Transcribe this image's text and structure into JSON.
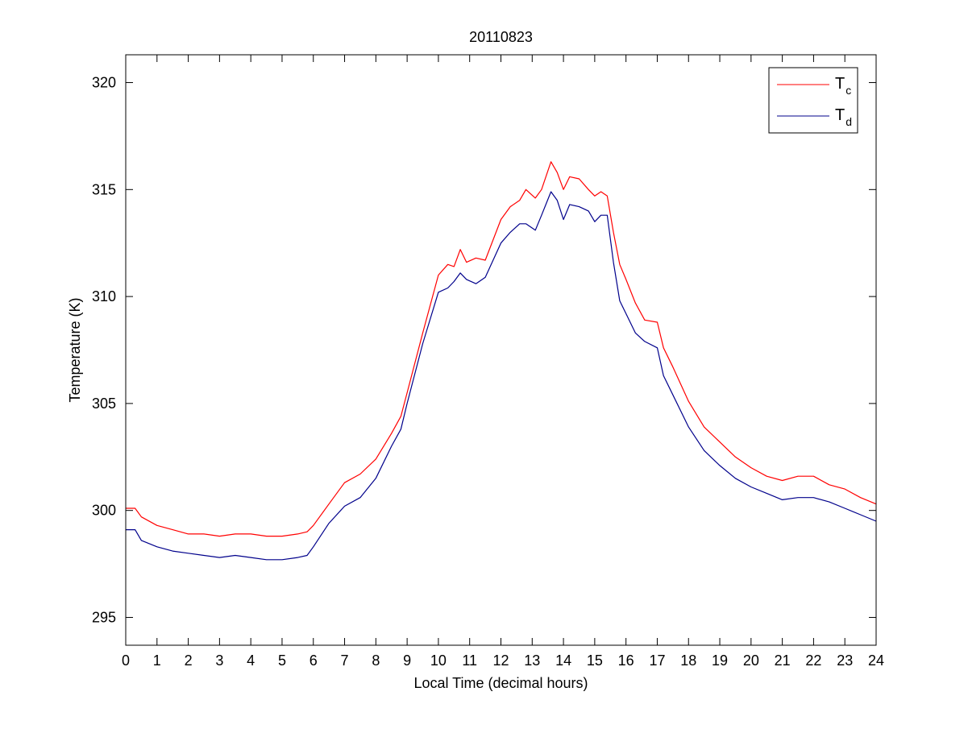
{
  "chart_data": {
    "type": "line",
    "title": "20110823",
    "xlabel": "Local Time (decimal hours)",
    "ylabel": "Temperature (K)",
    "xlim": [
      0,
      24
    ],
    "ylim": [
      293.7,
      321.3
    ],
    "xticks": [
      0,
      1,
      2,
      3,
      4,
      5,
      6,
      7,
      8,
      9,
      10,
      11,
      12,
      13,
      14,
      15,
      16,
      17,
      18,
      19,
      20,
      21,
      22,
      23,
      24
    ],
    "yticks": [
      295,
      300,
      305,
      310,
      315,
      320
    ],
    "grid": false,
    "legend_position": "top-right",
    "series": [
      {
        "name": "T_c",
        "label_main": "T",
        "label_sub": "c",
        "color": "#ff0000",
        "x": [
          0,
          0.3,
          0.5,
          1,
          1.5,
          2,
          2.5,
          3,
          3.5,
          4,
          4.5,
          5,
          5.5,
          5.8,
          6,
          6.5,
          7,
          7.5,
          8,
          8.5,
          8.8,
          9,
          9.5,
          10,
          10.3,
          10.5,
          10.7,
          10.9,
          11.2,
          11.5,
          12,
          12.3,
          12.6,
          12.8,
          13.1,
          13.3,
          13.6,
          13.8,
          14,
          14.2,
          14.5,
          14.8,
          15,
          15.2,
          15.4,
          15.6,
          15.8,
          16,
          16.3,
          16.6,
          17,
          17.2,
          17.5,
          18,
          18.5,
          19,
          19.5,
          20,
          20.5,
          21,
          21.5,
          22,
          22.5,
          23,
          23.5,
          24
        ],
        "y": [
          300.1,
          300.1,
          299.7,
          299.3,
          299.1,
          298.9,
          298.9,
          298.8,
          298.9,
          298.9,
          298.8,
          298.8,
          298.9,
          299.0,
          299.3,
          300.3,
          301.3,
          301.7,
          302.4,
          303.6,
          304.4,
          305.5,
          308.3,
          311.0,
          311.5,
          311.4,
          312.2,
          311.6,
          311.8,
          311.7,
          313.6,
          314.2,
          314.5,
          315.0,
          314.6,
          315.0,
          316.3,
          315.8,
          315.0,
          315.6,
          315.5,
          315.0,
          314.7,
          314.9,
          314.7,
          313.0,
          311.5,
          310.8,
          309.7,
          308.9,
          308.8,
          307.6,
          306.7,
          305.1,
          303.9,
          303.2,
          302.5,
          302.0,
          301.6,
          301.4,
          301.6,
          301.6,
          301.2,
          301.0,
          300.6,
          300.3
        ]
      },
      {
        "name": "T_d",
        "label_main": "T",
        "label_sub": "d",
        "color": "#00008b",
        "x": [
          0,
          0.3,
          0.5,
          1,
          1.5,
          2,
          2.5,
          3,
          3.5,
          4,
          4.5,
          5,
          5.5,
          5.8,
          6,
          6.5,
          7,
          7.5,
          8,
          8.5,
          8.8,
          9,
          9.5,
          10,
          10.3,
          10.5,
          10.7,
          10.9,
          11.2,
          11.5,
          12,
          12.3,
          12.6,
          12.8,
          13.1,
          13.3,
          13.6,
          13.8,
          14,
          14.2,
          14.5,
          14.8,
          15,
          15.2,
          15.4,
          15.6,
          15.8,
          16,
          16.3,
          16.6,
          17,
          17.2,
          17.5,
          18,
          18.5,
          19,
          19.5,
          20,
          20.5,
          21,
          21.5,
          22,
          22.5,
          23,
          23.5,
          24
        ],
        "y": [
          299.1,
          299.1,
          298.6,
          298.3,
          298.1,
          298.0,
          297.9,
          297.8,
          297.9,
          297.8,
          297.7,
          297.7,
          297.8,
          297.9,
          298.3,
          299.4,
          300.2,
          300.6,
          301.5,
          303.0,
          303.8,
          305.0,
          307.8,
          310.2,
          310.4,
          310.7,
          311.1,
          310.8,
          310.6,
          310.9,
          312.5,
          313.0,
          313.4,
          313.4,
          313.1,
          313.8,
          314.9,
          314.5,
          313.6,
          314.3,
          314.2,
          314.0,
          313.5,
          313.8,
          313.8,
          311.6,
          309.8,
          309.2,
          308.3,
          307.9,
          307.6,
          306.3,
          305.4,
          303.9,
          302.8,
          302.1,
          301.5,
          301.1,
          300.8,
          300.5,
          300.6,
          300.6,
          300.4,
          300.1,
          299.8,
          299.5
        ]
      }
    ]
  }
}
